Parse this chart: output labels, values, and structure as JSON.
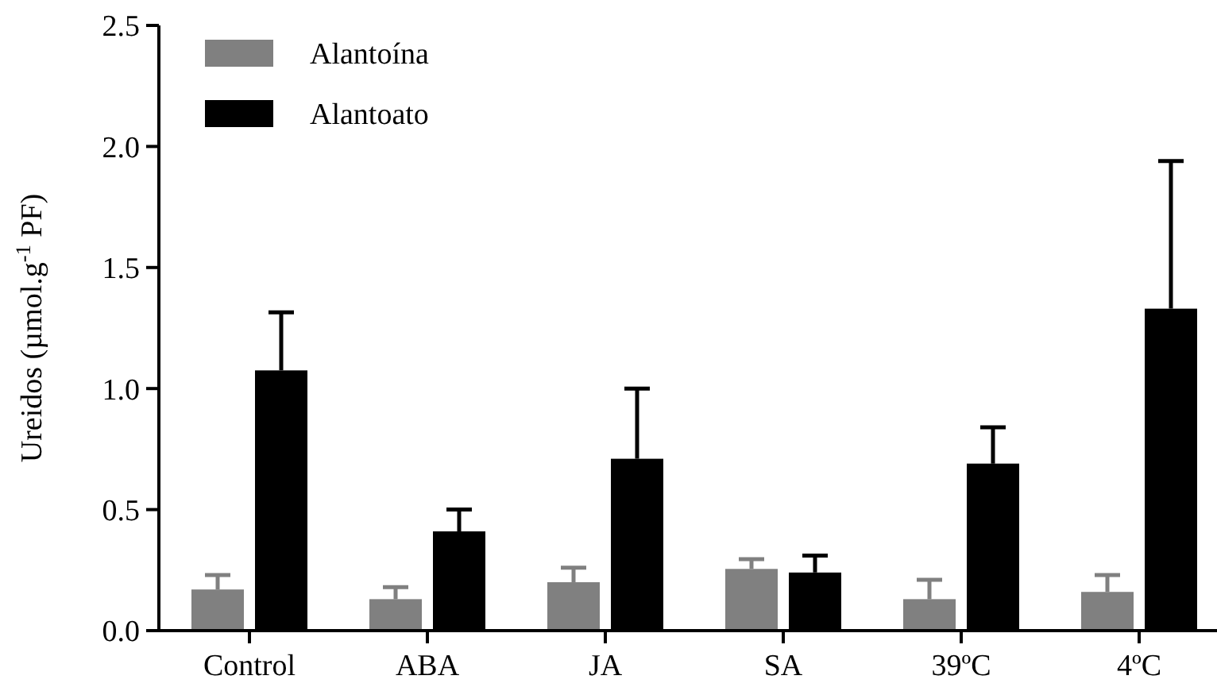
{
  "chart_data": {
    "type": "bar",
    "ylabel": "Ureidos (µmol.g$^{-1}$ PF)",
    "categories": [
      "Control",
      "ABA",
      "JA",
      "SA",
      "39ºC",
      "4ºC"
    ],
    "series": [
      {
        "name": "Alantoína",
        "color": "#808080",
        "values": [
          0.17,
          0.13,
          0.2,
          0.255,
          0.13,
          0.16
        ],
        "errors": [
          [
            0.17,
            0.23
          ],
          [
            0.13,
            0.18
          ],
          [
            0.2,
            0.26
          ],
          [
            0.255,
            0.295
          ],
          [
            0.13,
            0.21
          ],
          [
            0.16,
            0.23
          ]
        ]
      },
      {
        "name": "Alantoato",
        "color": "#000000",
        "values": [
          1.075,
          0.41,
          0.71,
          0.24,
          0.69,
          1.33
        ],
        "errors": [
          [
            1.075,
            1.315
          ],
          [
            0.41,
            0.5
          ],
          [
            0.71,
            1.0
          ],
          [
            0.24,
            0.31
          ],
          [
            0.69,
            0.84
          ],
          [
            1.33,
            1.94
          ]
        ]
      }
    ],
    "ylim": [
      0,
      2.5
    ],
    "yticks": [
      {
        "value": 0,
        "label": "0.0"
      },
      {
        "value": 0.5,
        "label": "0.5"
      },
      {
        "value": 1,
        "label": "1.0"
      },
      {
        "value": 1.5,
        "label": "1.5"
      },
      {
        "value": 2,
        "label": "2.0"
      },
      {
        "value": 2.5,
        "label": "2.5"
      }
    ],
    "legend": "top left"
  }
}
